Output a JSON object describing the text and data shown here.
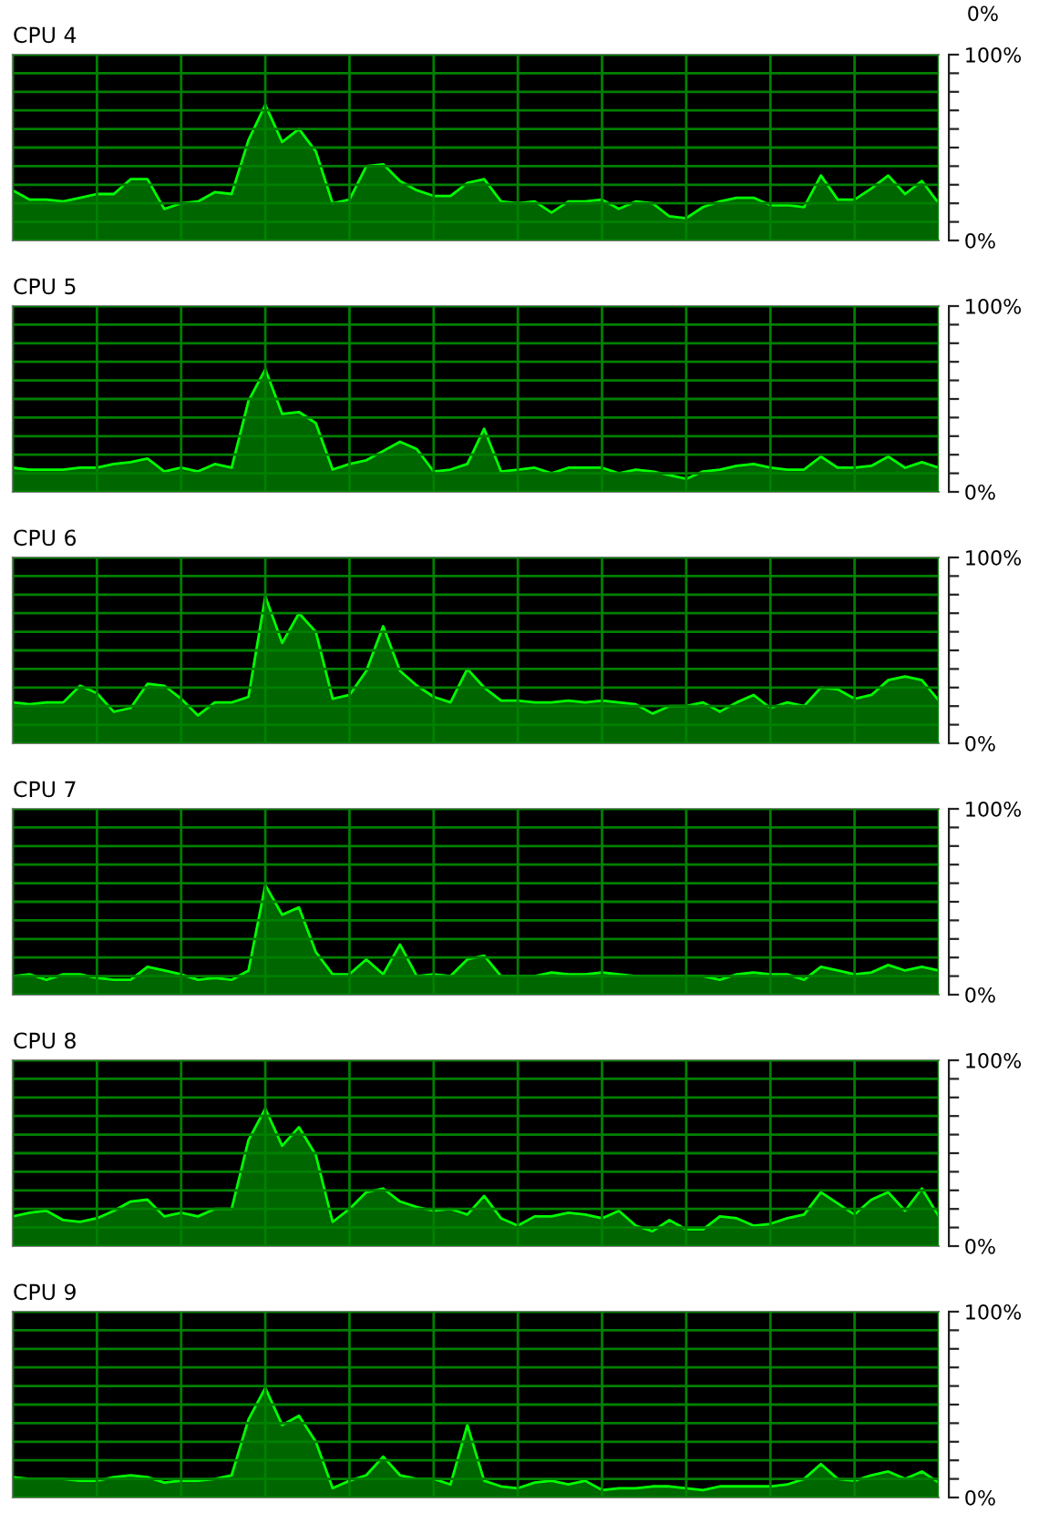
{
  "chart_data": [
    {
      "type": "area",
      "title": "CPU 4",
      "annotations": [
        "0%"
      ],
      "categories": [
        null,
        null,
        null,
        null,
        null,
        null,
        null,
        null,
        null,
        null,
        null,
        null,
        null,
        null,
        null,
        null,
        null,
        null,
        null,
        null,
        null,
        null,
        null,
        null,
        null,
        null,
        null,
        null,
        null,
        null,
        null,
        null,
        null,
        null,
        null,
        null,
        null,
        null,
        null,
        null,
        null,
        null,
        null,
        null,
        null,
        null,
        null,
        null,
        null,
        null,
        null,
        null,
        null,
        null,
        null,
        null
      ],
      "series": [
        {
          "color": "#00ff00",
          "values": [
            27,
            22,
            22,
            21,
            23,
            25,
            25,
            33,
            33,
            17,
            20,
            21,
            26,
            25,
            54,
            73,
            53,
            60,
            48,
            20,
            22,
            40,
            41,
            32,
            27,
            24,
            24,
            31,
            33,
            21,
            20,
            21,
            15,
            21,
            21,
            22,
            17,
            21,
            20,
            13,
            12,
            18,
            21,
            23,
            23,
            19,
            19,
            18,
            35,
            22,
            22,
            28,
            35,
            25,
            32,
            20
          ]
        }
      ],
      "ylim": [
        0,
        100
      ],
      "yticks": [
        {
          "value": 0,
          "label": "0%"
        },
        {
          "value": 10,
          "label": null
        },
        {
          "value": 20,
          "label": null
        },
        {
          "value": 30,
          "label": null
        },
        {
          "value": 40,
          "label": null
        },
        {
          "value": 50,
          "label": null
        },
        {
          "value": 60,
          "label": null
        },
        {
          "value": 70,
          "label": null
        },
        {
          "value": 80,
          "label": null
        },
        {
          "value": 90,
          "label": null
        },
        {
          "value": 100,
          "label": "100%"
        }
      ],
      "grid": true,
      "tick_labels": "y"
    },
    {
      "type": "area",
      "title": "CPU 5",
      "categories": [
        null,
        null,
        null,
        null,
        null,
        null,
        null,
        null,
        null,
        null,
        null,
        null,
        null,
        null,
        null,
        null,
        null,
        null,
        null,
        null,
        null,
        null,
        null,
        null,
        null,
        null,
        null,
        null,
        null,
        null,
        null,
        null,
        null,
        null,
        null,
        null,
        null,
        null,
        null,
        null,
        null,
        null,
        null,
        null,
        null,
        null,
        null,
        null,
        null,
        null,
        null,
        null,
        null,
        null,
        null,
        null
      ],
      "series": [
        {
          "color": "#00ff00",
          "values": [
            13,
            12,
            12,
            12,
            13,
            13,
            15,
            16,
            18,
            11,
            13,
            11,
            15,
            13,
            49,
            66,
            42,
            43,
            37,
            12,
            15,
            17,
            22,
            27,
            23,
            11,
            12,
            15,
            34,
            11,
            12,
            13,
            10,
            13,
            13,
            13,
            10,
            12,
            11,
            9,
            7,
            11,
            12,
            14,
            15,
            13,
            12,
            12,
            19,
            13,
            13,
            14,
            19,
            13,
            16,
            13
          ]
        }
      ],
      "ylim": [
        0,
        100
      ],
      "yticks": [
        {
          "value": 0,
          "label": "0%"
        },
        {
          "value": 10,
          "label": null
        },
        {
          "value": 20,
          "label": null
        },
        {
          "value": 30,
          "label": null
        },
        {
          "value": 40,
          "label": null
        },
        {
          "value": 50,
          "label": null
        },
        {
          "value": 60,
          "label": null
        },
        {
          "value": 70,
          "label": null
        },
        {
          "value": 80,
          "label": null
        },
        {
          "value": 90,
          "label": null
        },
        {
          "value": 100,
          "label": "100%"
        }
      ],
      "grid": true,
      "tick_labels": "y"
    },
    {
      "type": "area",
      "title": "CPU 6",
      "categories": [
        null,
        null,
        null,
        null,
        null,
        null,
        null,
        null,
        null,
        null,
        null,
        null,
        null,
        null,
        null,
        null,
        null,
        null,
        null,
        null,
        null,
        null,
        null,
        null,
        null,
        null,
        null,
        null,
        null,
        null,
        null,
        null,
        null,
        null,
        null,
        null,
        null,
        null,
        null,
        null,
        null,
        null,
        null,
        null,
        null,
        null,
        null,
        null,
        null,
        null,
        null,
        null,
        null,
        null,
        null,
        null
      ],
      "series": [
        {
          "color": "#00ff00",
          "values": [
            22,
            21,
            22,
            22,
            31,
            27,
            17,
            19,
            32,
            31,
            24,
            15,
            22,
            22,
            25,
            79,
            54,
            70,
            60,
            24,
            26,
            39,
            63,
            39,
            31,
            25,
            22,
            40,
            30,
            23,
            23,
            22,
            22,
            23,
            22,
            23,
            22,
            21,
            16,
            20,
            20,
            22,
            17,
            22,
            26,
            19,
            22,
            20,
            30,
            29,
            24,
            26,
            34,
            36,
            34,
            23
          ]
        }
      ],
      "ylim": [
        0,
        100
      ],
      "yticks": [
        {
          "value": 0,
          "label": "0%"
        },
        {
          "value": 10,
          "label": null
        },
        {
          "value": 20,
          "label": null
        },
        {
          "value": 30,
          "label": null
        },
        {
          "value": 40,
          "label": null
        },
        {
          "value": 50,
          "label": null
        },
        {
          "value": 60,
          "label": null
        },
        {
          "value": 70,
          "label": null
        },
        {
          "value": 80,
          "label": null
        },
        {
          "value": 90,
          "label": null
        },
        {
          "value": 100,
          "label": "100%"
        }
      ],
      "grid": true,
      "tick_labels": "y"
    },
    {
      "type": "area",
      "title": "CPU 7",
      "categories": [
        null,
        null,
        null,
        null,
        null,
        null,
        null,
        null,
        null,
        null,
        null,
        null,
        null,
        null,
        null,
        null,
        null,
        null,
        null,
        null,
        null,
        null,
        null,
        null,
        null,
        null,
        null,
        null,
        null,
        null,
        null,
        null,
        null,
        null,
        null,
        null,
        null,
        null,
        null,
        null,
        null,
        null,
        null,
        null,
        null,
        null,
        null,
        null,
        null,
        null,
        null,
        null,
        null,
        null,
        null,
        null
      ],
      "series": [
        {
          "color": "#00ff00",
          "values": [
            10,
            11,
            8,
            11,
            11,
            9,
            8,
            8,
            15,
            13,
            11,
            8,
            9,
            8,
            13,
            59,
            43,
            47,
            23,
            11,
            11,
            19,
            11,
            27,
            10,
            11,
            10,
            19,
            21,
            10,
            10,
            10,
            12,
            11,
            11,
            12,
            11,
            10,
            10,
            10,
            10,
            10,
            8,
            11,
            12,
            11,
            11,
            8,
            15,
            13,
            11,
            12,
            16,
            13,
            15,
            13
          ]
        }
      ],
      "ylim": [
        0,
        100
      ],
      "yticks": [
        {
          "value": 0,
          "label": "0%"
        },
        {
          "value": 10,
          "label": null
        },
        {
          "value": 20,
          "label": null
        },
        {
          "value": 30,
          "label": null
        },
        {
          "value": 40,
          "label": null
        },
        {
          "value": 50,
          "label": null
        },
        {
          "value": 60,
          "label": null
        },
        {
          "value": 70,
          "label": null
        },
        {
          "value": 80,
          "label": null
        },
        {
          "value": 90,
          "label": null
        },
        {
          "value": 100,
          "label": "100%"
        }
      ],
      "grid": true,
      "tick_labels": "y"
    },
    {
      "type": "area",
      "title": "CPU 8",
      "categories": [
        null,
        null,
        null,
        null,
        null,
        null,
        null,
        null,
        null,
        null,
        null,
        null,
        null,
        null,
        null,
        null,
        null,
        null,
        null,
        null,
        null,
        null,
        null,
        null,
        null,
        null,
        null,
        null,
        null,
        null,
        null,
        null,
        null,
        null,
        null,
        null,
        null,
        null,
        null,
        null,
        null,
        null,
        null,
        null,
        null,
        null,
        null,
        null,
        null,
        null,
        null,
        null,
        null,
        null,
        null,
        null
      ],
      "series": [
        {
          "color": "#00ff00",
          "values": [
            16,
            18,
            19,
            14,
            13,
            15,
            19,
            24,
            25,
            16,
            18,
            16,
            20,
            20,
            57,
            74,
            54,
            64,
            49,
            13,
            20,
            29,
            31,
            24,
            21,
            19,
            20,
            17,
            27,
            15,
            11,
            16,
            16,
            18,
            17,
            15,
            19,
            11,
            8,
            14,
            9,
            9,
            16,
            15,
            11,
            12,
            15,
            17,
            29,
            23,
            17,
            25,
            29,
            19,
            31,
            16
          ]
        }
      ],
      "ylim": [
        0,
        100
      ],
      "yticks": [
        {
          "value": 0,
          "label": "0%"
        },
        {
          "value": 10,
          "label": null
        },
        {
          "value": 20,
          "label": null
        },
        {
          "value": 30,
          "label": null
        },
        {
          "value": 40,
          "label": null
        },
        {
          "value": 50,
          "label": null
        },
        {
          "value": 60,
          "label": null
        },
        {
          "value": 70,
          "label": null
        },
        {
          "value": 80,
          "label": null
        },
        {
          "value": 90,
          "label": null
        },
        {
          "value": 100,
          "label": "100%"
        }
      ],
      "grid": true,
      "tick_labels": "y"
    },
    {
      "type": "area",
      "title": "CPU 9",
      "categories": [
        null,
        null,
        null,
        null,
        null,
        null,
        null,
        null,
        null,
        null,
        null,
        null,
        null,
        null,
        null,
        null,
        null,
        null,
        null,
        null,
        null,
        null,
        null,
        null,
        null,
        null,
        null,
        null,
        null,
        null,
        null,
        null,
        null,
        null,
        null,
        null,
        null,
        null,
        null,
        null,
        null,
        null,
        null,
        null,
        null,
        null,
        null,
        null,
        null,
        null,
        null,
        null,
        null,
        null,
        null,
        null
      ],
      "series": [
        {
          "color": "#00ff00",
          "values": [
            11,
            10,
            10,
            10,
            9,
            9,
            11,
            12,
            11,
            8,
            9,
            9,
            10,
            12,
            42,
            59,
            39,
            44,
            30,
            5,
            9,
            12,
            22,
            12,
            10,
            10,
            7,
            39,
            9,
            6,
            5,
            8,
            9,
            7,
            9,
            4,
            5,
            5,
            6,
            6,
            5,
            4,
            6,
            6,
            6,
            6,
            7,
            10,
            18,
            10,
            9,
            12,
            14,
            10,
            14,
            8
          ]
        }
      ],
      "ylim": [
        0,
        100
      ],
      "yticks": [
        {
          "value": 0,
          "label": "0%"
        },
        {
          "value": 10,
          "label": null
        },
        {
          "value": 20,
          "label": null
        },
        {
          "value": 30,
          "label": null
        },
        {
          "value": 40,
          "label": null
        },
        {
          "value": 50,
          "label": null
        },
        {
          "value": 60,
          "label": null
        },
        {
          "value": 70,
          "label": null
        },
        {
          "value": 80,
          "label": null
        },
        {
          "value": 90,
          "label": null
        },
        {
          "value": 100,
          "label": "100%"
        }
      ],
      "grid": true,
      "tick_labels": "y"
    }
  ]
}
